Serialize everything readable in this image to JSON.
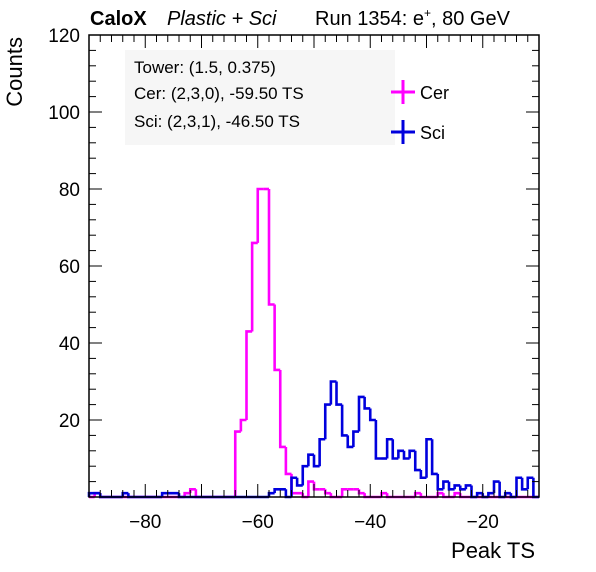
{
  "header": {
    "experiment": "CaloX",
    "config": "Plastic + Sci",
    "run_label": "Run 1354: e",
    "run_sup": "+",
    "run_suffix": ", 80 GeV"
  },
  "info": {
    "tower": "Tower: (1.5, 0.375)",
    "cer": "Cer: (2,3,0), -59.50 TS",
    "sci": "Sci: (2,3,1), -46.50 TS"
  },
  "chart_data": {
    "type": "histogram",
    "xlabel": "Peak TS",
    "ylabel": "Counts",
    "xlim": [
      -90,
      -10
    ],
    "ylim": [
      0,
      120
    ],
    "xticks": [
      -80,
      -60,
      -40,
      -20
    ],
    "xtick_labels": [
      "−80",
      "−60",
      "−40",
      "−20"
    ],
    "yticks": [
      20,
      40,
      60,
      80,
      100,
      120
    ],
    "bin_width": 1,
    "legend": "top-right",
    "grid": false,
    "series": [
      {
        "name": "Cer",
        "color": "#ff00ff",
        "bins": [
          [
            -90,
            0
          ],
          [
            -89,
            1
          ],
          [
            -88,
            0
          ],
          [
            -80,
            0
          ],
          [
            -79,
            0
          ],
          [
            -73,
            1
          ],
          [
            -72,
            2
          ],
          [
            -71,
            0
          ],
          [
            -69,
            0
          ],
          [
            -64,
            17
          ],
          [
            -63,
            20
          ],
          [
            -62,
            43
          ],
          [
            -61,
            66
          ],
          [
            -60,
            80
          ],
          [
            -59,
            80
          ],
          [
            -58,
            50
          ],
          [
            -57,
            33
          ],
          [
            -56,
            13
          ],
          [
            -55,
            6
          ],
          [
            -54,
            1
          ],
          [
            -52,
            0
          ],
          [
            -51,
            4
          ],
          [
            -50,
            2
          ],
          [
            -49,
            2
          ],
          [
            -48,
            1
          ],
          [
            -47,
            0
          ],
          [
            -46,
            0
          ],
          [
            -45,
            2
          ],
          [
            -44,
            2
          ],
          [
            -43,
            2
          ],
          [
            -42,
            1
          ],
          [
            -41,
            0
          ],
          [
            -38,
            1
          ],
          [
            -37,
            0
          ],
          [
            -33,
            0
          ],
          [
            -32,
            1
          ],
          [
            -31,
            0
          ],
          [
            -28,
            1
          ],
          [
            -27,
            0
          ],
          [
            -25,
            1
          ],
          [
            -24,
            0
          ]
        ]
      },
      {
        "name": "Sci",
        "color": "#0000dd",
        "bins": [
          [
            -90,
            1
          ],
          [
            -88,
            0
          ],
          [
            -84,
            1
          ],
          [
            -83,
            0
          ],
          [
            -77,
            1
          ],
          [
            -74,
            0
          ],
          [
            -58,
            1
          ],
          [
            -57,
            2
          ],
          [
            -55,
            0
          ],
          [
            -54,
            5
          ],
          [
            -53,
            3
          ],
          [
            -52,
            8
          ],
          [
            -51,
            11
          ],
          [
            -50,
            8
          ],
          [
            -49,
            15
          ],
          [
            -48,
            24
          ],
          [
            -47,
            30
          ],
          [
            -46,
            24
          ],
          [
            -45,
            16
          ],
          [
            -44,
            13
          ],
          [
            -43,
            17
          ],
          [
            -42,
            26
          ],
          [
            -41,
            23
          ],
          [
            -40,
            20
          ],
          [
            -39,
            10
          ],
          [
            -38,
            10
          ],
          [
            -37,
            15
          ],
          [
            -36,
            10
          ],
          [
            -35,
            12
          ],
          [
            -34,
            10
          ],
          [
            -33,
            12
          ],
          [
            -32,
            7
          ],
          [
            -31,
            5
          ],
          [
            -30,
            15
          ],
          [
            -29,
            6
          ],
          [
            -28,
            2
          ],
          [
            -27,
            4
          ],
          [
            -26,
            2
          ],
          [
            -25,
            3
          ],
          [
            -24,
            2
          ],
          [
            -23,
            3
          ],
          [
            -22,
            0
          ],
          [
            -21,
            1
          ],
          [
            -20,
            0
          ],
          [
            -19,
            1
          ],
          [
            -18,
            4
          ],
          [
            -17,
            0
          ],
          [
            -16,
            1
          ],
          [
            -15,
            0
          ],
          [
            -14,
            5
          ],
          [
            -13,
            2
          ],
          [
            -12,
            5
          ],
          [
            -11,
            0
          ],
          [
            -10,
            0
          ]
        ]
      }
    ]
  }
}
